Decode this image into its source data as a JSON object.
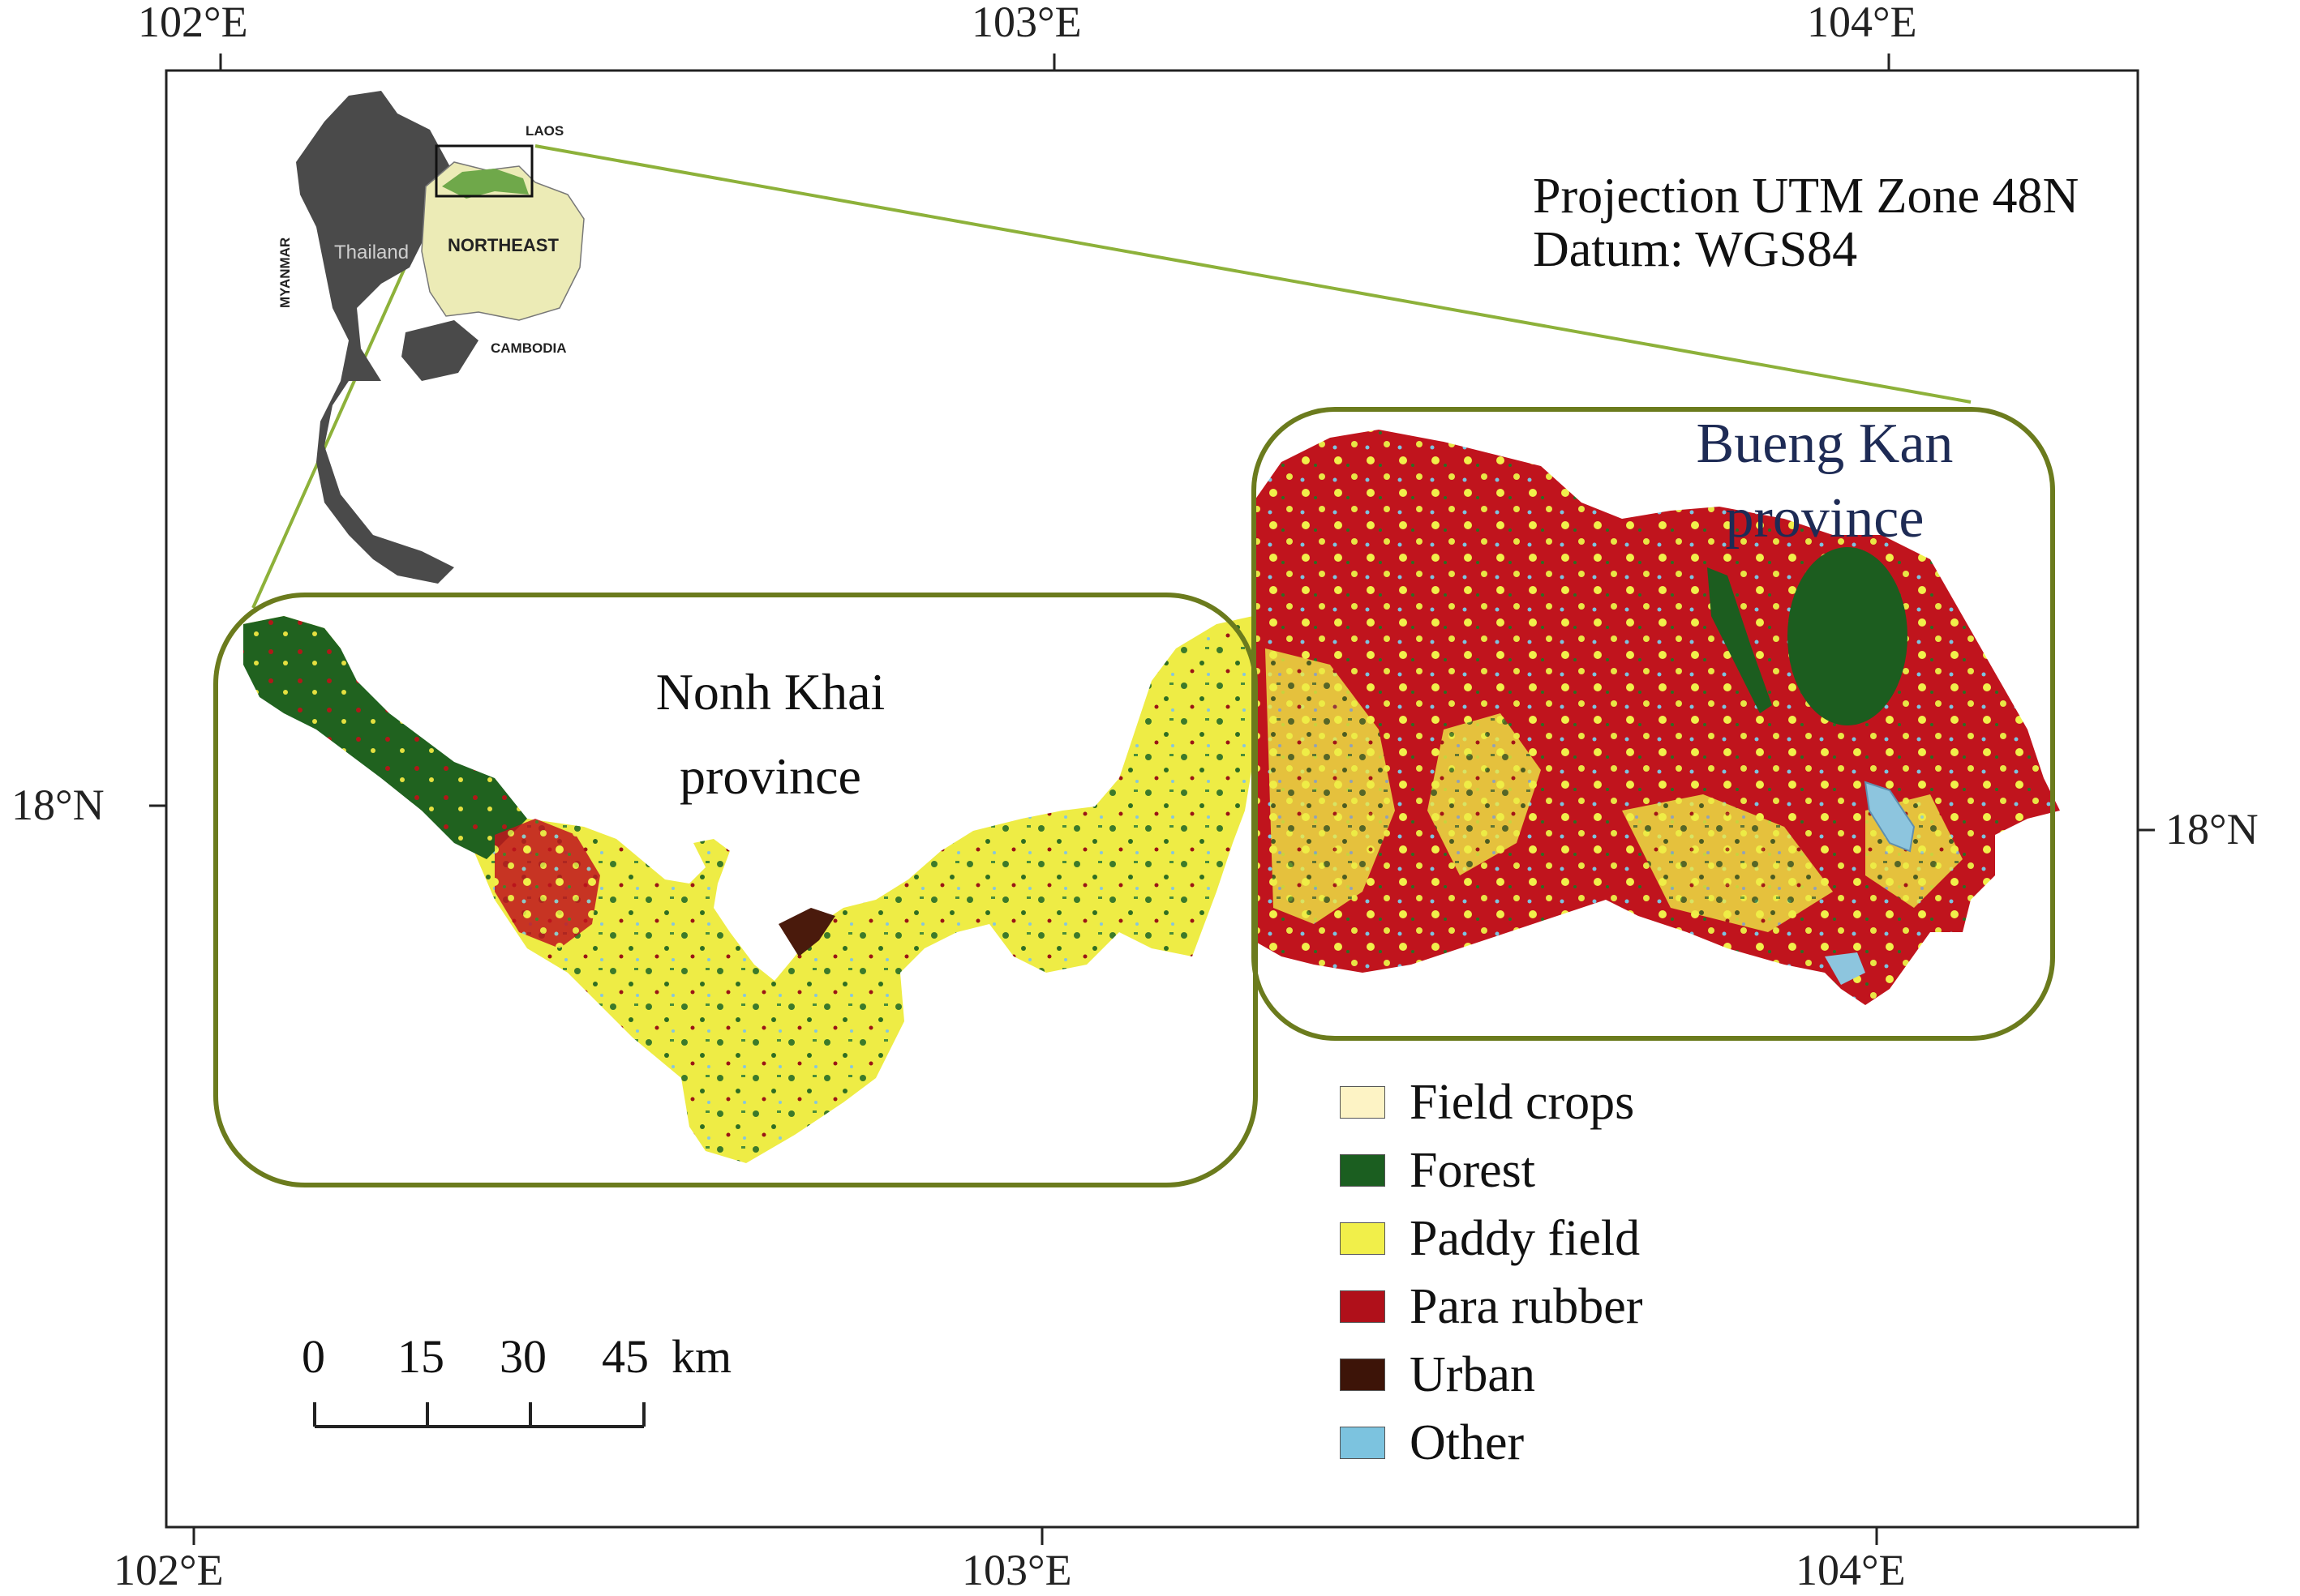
{
  "map": {
    "top_ticks": [
      "102°E",
      "103°E",
      "104°E"
    ],
    "bottom_ticks": [
      "102°E",
      "103°E",
      "104°E"
    ],
    "left_tick": "18°N",
    "right_tick": "18°N"
  },
  "info": {
    "projection": "Projection UTM Zone 48N",
    "datum": "Datum: WGS84"
  },
  "regions": {
    "nong_khai_line1": "Nonh Khai",
    "nong_khai_line2": "province",
    "bueng_kan_line1": "Bueng Kan",
    "bueng_kan_line2": "province"
  },
  "inset": {
    "laos": "LAOS",
    "thailand": "Thailand",
    "northeast": "NORTHEAST",
    "myanmar": "MYANMAR",
    "cambodia": "CAMBODIA"
  },
  "legend": [
    {
      "label": "Field crops",
      "color": "#fdf3c5"
    },
    {
      "label": "Forest",
      "color": "#1b5e20"
    },
    {
      "label": "Paddy field",
      "color": "#f1ef4a"
    },
    {
      "label": "Para rubber",
      "color": "#b0101a"
    },
    {
      "label": "Urban",
      "color": "#3d1408"
    },
    {
      "label": "Other",
      "color": "#7cc3df"
    }
  ],
  "scalebar": {
    "ticks": [
      "0",
      "15",
      "30",
      "45"
    ],
    "unit": "km"
  },
  "colors": {
    "frame_green": "#6b7b1d",
    "zoom_line": "#8db13a",
    "title_navy": "#1e2b55"
  }
}
